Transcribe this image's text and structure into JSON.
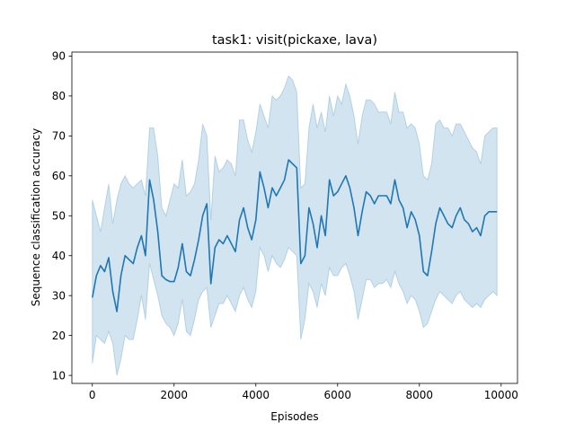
{
  "chart_data": {
    "type": "line",
    "title": "task1: visit(pickaxe, lava)",
    "xlabel": "Episodes",
    "ylabel": "Sequence classification accuracy",
    "xlim": [
      -500,
      10400
    ],
    "ylim": [
      8,
      91
    ],
    "xticks": [
      0,
      2000,
      4000,
      6000,
      8000,
      10000
    ],
    "yticks": [
      10,
      20,
      30,
      40,
      50,
      60,
      70,
      80,
      90
    ],
    "grid": false,
    "colors": {
      "line": "#1f77b4",
      "band": "#1f77b4",
      "band_opacity": 0.2
    },
    "series": [
      {
        "x": [
          0,
          100,
          200,
          300,
          400,
          500,
          600,
          700,
          800,
          900,
          1000,
          1100,
          1200,
          1300,
          1400,
          1500,
          1600,
          1700,
          1800,
          1900,
          2000,
          2100,
          2200,
          2300,
          2400,
          2500,
          2600,
          2700,
          2800,
          2900,
          3000,
          3100,
          3200,
          3300,
          3400,
          3500,
          3600,
          3700,
          3800,
          3900,
          4000,
          4100,
          4200,
          4300,
          4400,
          4500,
          4600,
          4700,
          4800,
          4900,
          5000,
          5100,
          5200,
          5300,
          5400,
          5500,
          5600,
          5700,
          5800,
          5900,
          6000,
          6100,
          6200,
          6300,
          6400,
          6500,
          6600,
          6700,
          6800,
          6900,
          7000,
          7100,
          7200,
          7300,
          7400,
          7500,
          7600,
          7700,
          7800,
          7900,
          8000,
          8100,
          8200,
          8300,
          8400,
          8500,
          8600,
          8700,
          8800,
          8900,
          9000,
          9100,
          9200,
          9300,
          9400,
          9500,
          9600,
          9700,
          9800,
          9900
        ],
        "mean": [
          29.5,
          35,
          37.5,
          36,
          39.5,
          31,
          26,
          35,
          40,
          39,
          38,
          42,
          45,
          40,
          59,
          54,
          46,
          35,
          34,
          33.5,
          33.5,
          37,
          43,
          36,
          35,
          39,
          44,
          50,
          53,
          33,
          42,
          44,
          43,
          45,
          43,
          41,
          49,
          52,
          47,
          44,
          49,
          61,
          57,
          52,
          57,
          55,
          57,
          59,
          64,
          63,
          62,
          38,
          40,
          52,
          48,
          42,
          50,
          45,
          59,
          55,
          56,
          58,
          60,
          57,
          52,
          45,
          51,
          56,
          55,
          53,
          55,
          55,
          55,
          53,
          59,
          54,
          52,
          47,
          51,
          49,
          45,
          36,
          35,
          41,
          48,
          52,
          50,
          48,
          47,
          50,
          52,
          49,
          48,
          46,
          47,
          45,
          50,
          51,
          51,
          51
        ],
        "upper": [
          54,
          50,
          46,
          52,
          58,
          48,
          54,
          58,
          60,
          58,
          57,
          58,
          59,
          55,
          72,
          72,
          65,
          52,
          50,
          54,
          58,
          57,
          64,
          55,
          56,
          58,
          64,
          73,
          70,
          49,
          65,
          61,
          62,
          64,
          63,
          60,
          74,
          74,
          69,
          66,
          71,
          78,
          75,
          72,
          80,
          79,
          80,
          82,
          85,
          84,
          81,
          57,
          58,
          72,
          78,
          72,
          76,
          71,
          80,
          75,
          80,
          78,
          83,
          80,
          75,
          68,
          75,
          79,
          79,
          78,
          76,
          76,
          76,
          73,
          81,
          76,
          76,
          72,
          73,
          72,
          68,
          60,
          59,
          63,
          73,
          74,
          72,
          72,
          70,
          73,
          73,
          71,
          69,
          67,
          66,
          63,
          70,
          71,
          72,
          72
        ],
        "lower": [
          13,
          20,
          19,
          18,
          21,
          18,
          10,
          14,
          20,
          19,
          19,
          24,
          30,
          24,
          38,
          34,
          30,
          25,
          23,
          22,
          20,
          23,
          29,
          21,
          20,
          24,
          29,
          31,
          32,
          22,
          25,
          28,
          28,
          30,
          28,
          26,
          30,
          32,
          29,
          27,
          31,
          42,
          40,
          36,
          40,
          38,
          37,
          39,
          42,
          41,
          40,
          19,
          24,
          33,
          31,
          27,
          33,
          30,
          37,
          35,
          35,
          37,
          38,
          35,
          31,
          24,
          29,
          34,
          34,
          32,
          33,
          33,
          34,
          32,
          36,
          33,
          31,
          28,
          30,
          29,
          26,
          22,
          23,
          26,
          29,
          31,
          30,
          29,
          28,
          30,
          31,
          29,
          28,
          27,
          28,
          27,
          29,
          30,
          31,
          30
        ]
      }
    ]
  }
}
